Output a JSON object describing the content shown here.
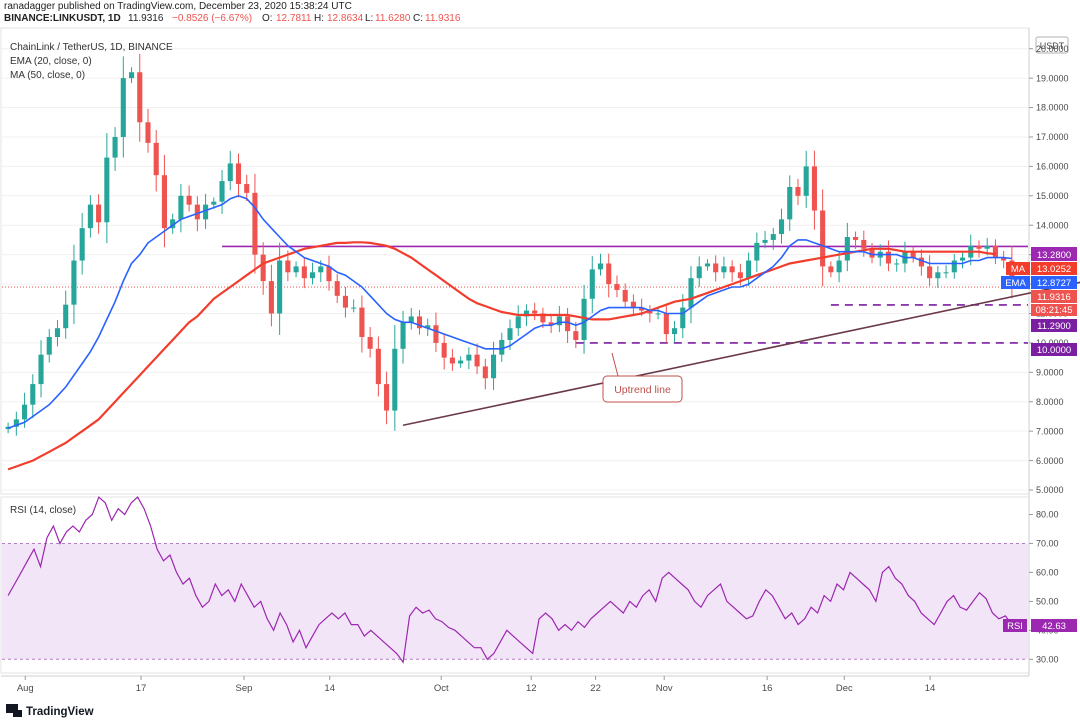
{
  "header": {
    "publish_line": "ranadagger published on TradingView.com, December 23, 2020 15:38:24 UTC",
    "symbol": "BINANCE:LINKUSDT, 1D",
    "last": "11.9316",
    "change": "−0.8526 (−6.67%)",
    "o_label": "O:",
    "o_val": "12.7811",
    "h_label": "H:",
    "h_val": "12.8634",
    "l_label": "L:",
    "l_val": "11.6280",
    "c_label": "C:",
    "c_val": "11.9316"
  },
  "legend": {
    "title": "ChainLink / TetherUS, 1D, BINANCE",
    "ema": "EMA (20, close, 0)",
    "ma": "MA (50, close, 0)",
    "rsi": "RSI (14, close)"
  },
  "currency_button": "USDT",
  "annotation": "Uptrend line",
  "footer_brand": "TradingView",
  "colors": {
    "up": "#26a69a",
    "down": "#ef5350",
    "ema": "#2962ff",
    "ma": "#f23d2d",
    "resistance": "#9c27b0",
    "support": "#7b1fa2",
    "rsi_line": "#9c27b0",
    "rsi_band": "#f3e5f8",
    "trendline": "#6b3a4a",
    "annotation": "#c0504d"
  },
  "tags": {
    "resistance": "13.2800",
    "ma": "MA",
    "ma_val": "13.0252",
    "ema": "EMA",
    "ema_val": "12.8727",
    "price": "11.9316",
    "countdown": "08:21:45",
    "support1": "11.2900",
    "support2": "10.0000",
    "rsi": "RSI",
    "rsi_val": "42.63"
  },
  "chart_data": {
    "type": "candlestick",
    "title": "ChainLink / TetherUS, 1D, BINANCE",
    "xlabels": [
      "Aug",
      "17",
      "Sep",
      "14",
      "Oct",
      "12",
      "22",
      "Nov",
      "16",
      "Dec",
      "14"
    ],
    "price_axis": [
      "20.0000",
      "19.0000",
      "18.0000",
      "17.0000",
      "16.0000",
      "15.0000",
      "14.0000",
      "13.0000",
      "12.0000",
      "11.0000",
      "10.0000",
      "9.0000",
      "8.0000",
      "7.0000",
      "6.0000",
      "5.0000"
    ],
    "price_ylim": [
      5,
      20.5
    ],
    "rsi_axis": [
      "80.00",
      "70.00",
      "60.00",
      "50.00",
      "40.00",
      "30.00"
    ],
    "rsi_ylim": [
      27,
      85
    ],
    "rsi_band": [
      30,
      70
    ],
    "levels": [
      {
        "name": "resistance",
        "value": 13.28,
        "style": "solid"
      },
      {
        "name": "support",
        "value": 11.29,
        "style": "dashed"
      },
      {
        "name": "support",
        "value": 10.0,
        "style": "dashed"
      }
    ],
    "trendline": {
      "from": [
        48,
        7.2
      ],
      "to": [
        131,
        12.1
      ]
    },
    "closes": [
      7.15,
      7.4,
      7.9,
      8.6,
      9.6,
      10.2,
      10.5,
      11.3,
      12.8,
      13.9,
      14.7,
      14.1,
      16.3,
      17.0,
      19.0,
      19.2,
      17.5,
      16.8,
      15.7,
      13.9,
      14.2,
      15.0,
      14.7,
      14.2,
      14.7,
      14.8,
      15.5,
      16.1,
      15.4,
      15.1,
      13.0,
      12.1,
      11.0,
      12.8,
      12.4,
      12.6,
      12.2,
      12.4,
      12.6,
      12.1,
      11.6,
      11.2,
      11.2,
      10.2,
      9.8,
      8.6,
      7.7,
      9.8,
      10.7,
      10.9,
      10.5,
      10.6,
      10.0,
      9.5,
      9.3,
      9.4,
      9.6,
      9.2,
      8.8,
      9.6,
      10.1,
      10.5,
      10.9,
      11.1,
      11.0,
      10.7,
      10.6,
      10.9,
      10.4,
      10.1,
      11.5,
      12.5,
      12.7,
      12.0,
      11.8,
      11.4,
      11.2,
      11.1,
      11.0,
      11.0,
      10.3,
      10.5,
      11.2,
      12.2,
      12.6,
      12.7,
      12.4,
      12.6,
      12.4,
      12.2,
      12.8,
      13.4,
      13.5,
      13.7,
      14.2,
      15.3,
      15.0,
      16.0,
      14.5,
      12.6,
      12.4,
      12.8,
      13.6,
      13.5,
      13.2,
      12.9,
      13.1,
      12.7,
      12.7,
      13.1,
      12.9,
      12.6,
      12.2,
      12.4,
      12.4,
      12.8,
      12.9,
      13.3,
      13.2,
      13.3,
      12.9,
      12.8,
      11.9
    ],
    "ema20": [
      7.1,
      7.2,
      7.3,
      7.5,
      7.7,
      7.9,
      8.2,
      8.5,
      8.9,
      9.3,
      9.7,
      10.2,
      10.8,
      11.4,
      12.1,
      12.7,
      13.0,
      13.4,
      13.6,
      13.8,
      14.0,
      14.2,
      14.3,
      14.4,
      14.5,
      14.6,
      14.7,
      14.9,
      15.0,
      14.9,
      14.6,
      14.2,
      13.9,
      13.6,
      13.3,
      13.1,
      12.9,
      12.8,
      12.7,
      12.6,
      12.4,
      12.3,
      12.1,
      11.9,
      11.6,
      11.3,
      11.0,
      10.8,
      10.7,
      10.7,
      10.6,
      10.5,
      10.4,
      10.3,
      10.2,
      10.1,
      10.0,
      9.9,
      9.8,
      9.8,
      9.8,
      9.9,
      10.1,
      10.3,
      10.5,
      10.6,
      10.6,
      10.7,
      10.7,
      10.6,
      10.7,
      10.9,
      11.1,
      11.2,
      11.2,
      11.2,
      11.2,
      11.2,
      11.1,
      11.1,
      11.0,
      11.0,
      11.0,
      11.2,
      11.4,
      11.6,
      11.7,
      11.8,
      11.9,
      11.9,
      12.0,
      12.2,
      12.4,
      12.6,
      12.9,
      13.3,
      13.5,
      13.5,
      13.4,
      13.3,
      13.2,
      13.1,
      13.1,
      13.1,
      13.1,
      13.0,
      13.0,
      13.0,
      13.0,
      12.9,
      12.9,
      12.8,
      12.7,
      12.7,
      12.7,
      12.7,
      12.7,
      12.8,
      12.8,
      12.9,
      12.9,
      12.9,
      12.87
    ],
    "ma50": [
      5.7,
      5.8,
      5.9,
      6.0,
      6.15,
      6.3,
      6.45,
      6.6,
      6.8,
      7.0,
      7.2,
      7.4,
      7.7,
      8.0,
      8.3,
      8.6,
      8.9,
      9.2,
      9.5,
      9.8,
      10.1,
      10.4,
      10.7,
      10.9,
      11.2,
      11.5,
      11.7,
      11.9,
      12.1,
      12.3,
      12.5,
      12.7,
      12.8,
      12.9,
      13.0,
      13.1,
      13.2,
      13.25,
      13.3,
      13.35,
      13.4,
      13.4,
      13.42,
      13.42,
      13.4,
      13.35,
      13.3,
      13.2,
      13.05,
      12.9,
      12.7,
      12.5,
      12.3,
      12.1,
      11.9,
      11.7,
      11.5,
      11.35,
      11.25,
      11.15,
      11.05,
      11.0,
      10.95,
      10.95,
      10.95,
      10.95,
      10.95,
      10.95,
      10.95,
      10.9,
      10.85,
      10.8,
      10.8,
      10.8,
      10.85,
      10.9,
      10.95,
      11.0,
      11.1,
      11.2,
      11.3,
      11.4,
      11.45,
      11.5,
      11.6,
      11.7,
      11.8,
      11.9,
      12.0,
      12.1,
      12.2,
      12.3,
      12.4,
      12.5,
      12.6,
      12.7,
      12.75,
      12.8,
      12.85,
      12.9,
      12.95,
      13.0,
      13.05,
      13.1,
      13.15,
      13.2,
      13.2,
      13.2,
      13.15,
      13.1,
      13.1,
      13.1,
      13.1,
      13.1,
      13.1,
      13.1,
      13.1,
      13.1,
      13.1,
      13.05,
      13.02
    ],
    "rsi14": [
      52,
      56,
      60,
      64,
      68,
      62,
      72,
      76,
      70,
      74,
      76,
      74,
      78,
      80,
      86,
      84,
      78,
      82,
      80,
      84,
      86,
      82,
      76,
      68,
      64,
      66,
      60,
      56,
      58,
      52,
      48,
      50,
      56,
      52,
      54,
      50,
      56,
      52,
      48,
      50,
      44,
      40,
      46,
      42,
      36,
      40,
      34,
      38,
      42,
      44,
      46,
      44,
      46,
      42,
      42,
      38,
      40,
      38,
      36,
      34,
      32,
      29,
      45,
      48,
      46,
      47,
      44,
      43,
      41,
      40,
      38,
      36,
      34,
      34,
      30,
      32,
      36,
      40,
      38,
      36,
      34,
      32,
      44,
      46,
      44,
      40,
      42,
      40,
      43,
      41,
      44,
      46,
      48,
      50,
      48,
      46,
      50,
      48,
      52,
      54,
      50,
      58,
      60,
      58,
      56,
      54,
      50,
      48,
      52,
      54,
      56,
      50,
      48,
      46,
      44,
      45,
      50,
      54,
      52,
      48,
      44,
      46,
      42,
      44,
      48,
      46,
      52,
      50,
      56,
      54,
      60,
      58,
      56,
      54,
      50,
      60,
      62,
      58,
      56,
      52,
      50,
      46,
      44,
      42,
      46,
      50,
      52,
      48,
      47,
      50,
      53,
      51,
      46,
      44,
      45,
      42
    ],
    "rsi14_note": "",
    "rsi_last": 42.63
  }
}
